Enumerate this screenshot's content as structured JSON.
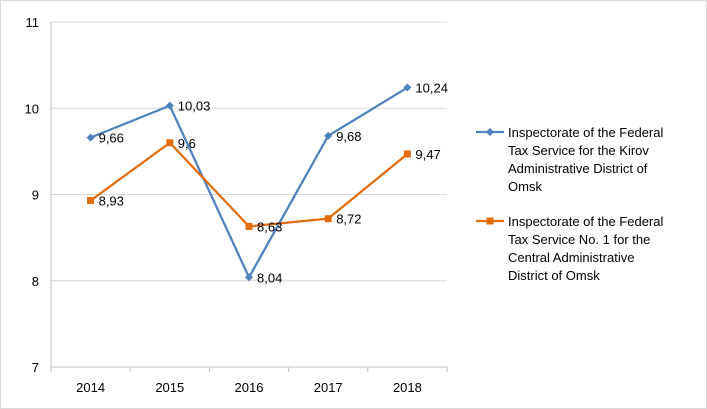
{
  "chart_data": {
    "type": "line",
    "title": "",
    "xlabel": "",
    "ylabel": "",
    "categories": [
      "2014",
      "2015",
      "2016",
      "2017",
      "2018"
    ],
    "ylim": [
      7,
      11
    ],
    "yticks": [
      "7",
      "8",
      "9",
      "10",
      "11"
    ],
    "grid": true,
    "legend_position": "right",
    "series": [
      {
        "name": "Inspectorate of the Federal Tax Service for the Kirov Administrative District of Omsk",
        "legend_lines": [
          "Inspectorate of the Federal",
          "Tax Service for the Kirov",
          "Administrative District of",
          "Omsk"
        ],
        "color": "#4f81bd",
        "marker": "diamond",
        "values": [
          9.66,
          10.03,
          8.04,
          9.68,
          10.24
        ],
        "labels": [
          "9,66",
          "10,03",
          "8,04",
          "9,68",
          "10,24"
        ]
      },
      {
        "name": "Inspectorate of the Federal Tax Service No. 1 for the Central Administrative District of Omsk",
        "legend_lines": [
          "Inspectorate of the Federal",
          "Tax Service No. 1 for the",
          "Central Administrative",
          "District of Omsk"
        ],
        "color": "#e46c0a",
        "marker": "square",
        "values": [
          8.93,
          9.6,
          8.63,
          8.72,
          9.47
        ],
        "labels": [
          "8,93",
          "9,6",
          "8,63",
          "8,72",
          "9,47"
        ]
      }
    ]
  }
}
